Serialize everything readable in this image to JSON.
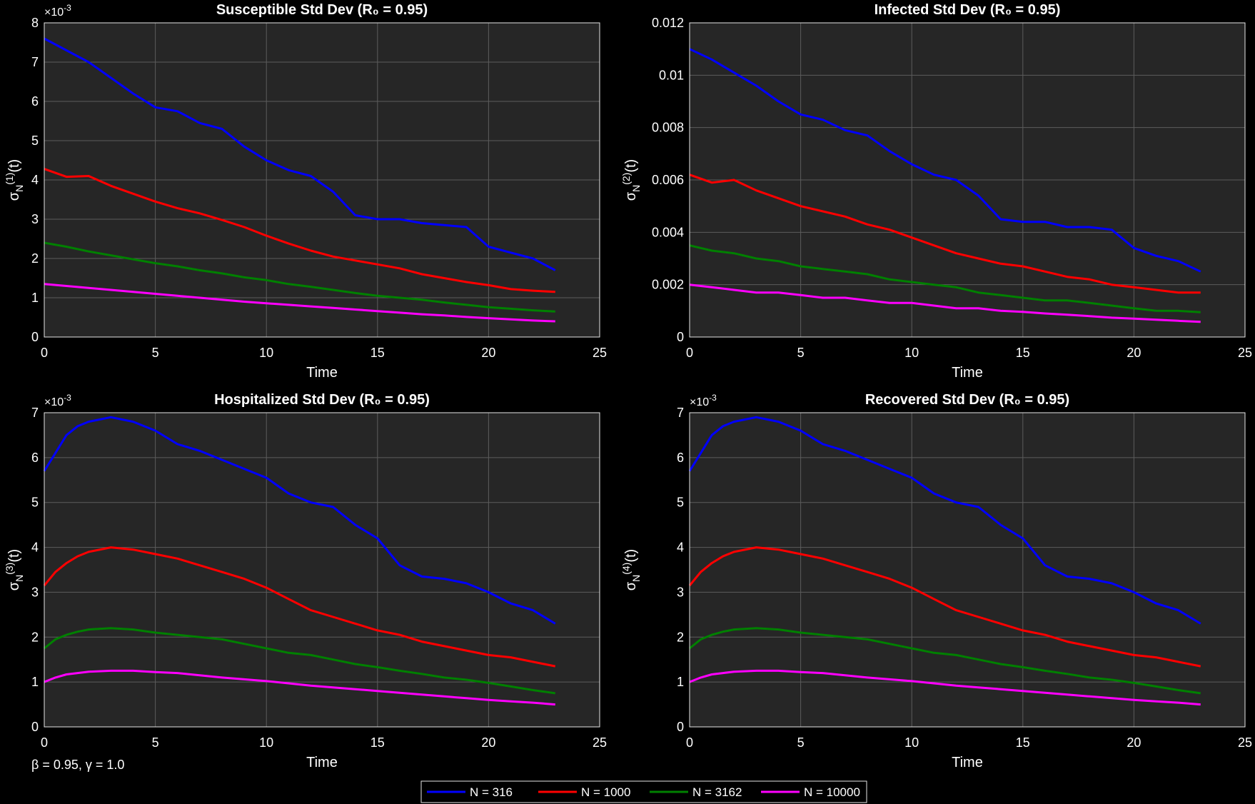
{
  "figure": {
    "footnote": "β = 0.95, γ = 1.0"
  },
  "legend": [
    {
      "label": "N = 316",
      "color": "#0000ff"
    },
    {
      "label": "N = 1000",
      "color": "#ff0000"
    },
    {
      "label": "N = 3162",
      "color": "#008000"
    },
    {
      "label": "N = 10000",
      "color": "#ff00ff"
    }
  ],
  "chart_data": [
    {
      "type": "line",
      "title": "Susceptible Std Dev (R₀ = 0.95)",
      "xlabel": "Time",
      "ylabel": "σN(1)(t)",
      "ylabel_base": "σ",
      "ylabel_sub": "N",
      "ylabel_sup": "(1)",
      "ylabel_tail": "(t)",
      "exponent_label": "×10-3",
      "exponent_base": "×10",
      "exponent_sup": "-3",
      "xlim": [
        0,
        25
      ],
      "ylim": [
        0,
        8
      ],
      "xticks": [
        0,
        5,
        10,
        15,
        20,
        25
      ],
      "yticks": [
        0,
        1,
        2,
        3,
        4,
        5,
        6,
        7,
        8
      ],
      "ytick_labels": [
        "0",
        "1",
        "2",
        "3",
        "4",
        "5",
        "6",
        "7",
        "8"
      ],
      "grid": true,
      "x": [
        0,
        1,
        2,
        3,
        4,
        5,
        6,
        7,
        8,
        9,
        10,
        11,
        12,
        13,
        14,
        15,
        16,
        17,
        18,
        19,
        20,
        21,
        22,
        23
      ],
      "series": [
        {
          "name": "N = 316",
          "color": "#0000ff",
          "values": [
            7.6,
            7.3,
            7.0,
            6.6,
            6.2,
            5.85,
            5.75,
            5.45,
            5.3,
            4.85,
            4.5,
            4.25,
            4.1,
            3.7,
            3.1,
            3.0,
            3.0,
            2.9,
            2.85,
            2.8,
            2.3,
            2.15,
            2.0,
            1.7
          ]
        },
        {
          "name": "N = 1000",
          "color": "#ff0000",
          "values": [
            4.28,
            4.08,
            4.1,
            3.85,
            3.65,
            3.45,
            3.28,
            3.15,
            2.98,
            2.8,
            2.58,
            2.38,
            2.2,
            2.05,
            1.95,
            1.85,
            1.75,
            1.6,
            1.5,
            1.4,
            1.32,
            1.22,
            1.18,
            1.15
          ]
        },
        {
          "name": "N = 3162",
          "color": "#008000",
          "values": [
            2.4,
            2.3,
            2.18,
            2.08,
            1.98,
            1.88,
            1.8,
            1.7,
            1.62,
            1.52,
            1.45,
            1.35,
            1.28,
            1.2,
            1.12,
            1.05,
            1.0,
            0.95,
            0.88,
            0.82,
            0.76,
            0.72,
            0.68,
            0.65
          ]
        },
        {
          "name": "N = 10000",
          "color": "#ff00ff",
          "values": [
            1.35,
            1.3,
            1.25,
            1.2,
            1.15,
            1.1,
            1.05,
            1.0,
            0.95,
            0.9,
            0.86,
            0.82,
            0.78,
            0.74,
            0.7,
            0.66,
            0.62,
            0.58,
            0.55,
            0.51,
            0.48,
            0.45,
            0.42,
            0.4
          ]
        }
      ]
    },
    {
      "type": "line",
      "title": "Infected Std Dev (R₀ = 0.95)",
      "xlabel": "Time",
      "ylabel": "σN(2)(t)",
      "ylabel_base": "σ",
      "ylabel_sub": "N",
      "ylabel_sup": "(2)",
      "ylabel_tail": "(t)",
      "exponent_label": "",
      "exponent_base": "",
      "exponent_sup": "",
      "xlim": [
        0,
        25
      ],
      "ylim": [
        0,
        0.012
      ],
      "xticks": [
        0,
        5,
        10,
        15,
        20,
        25
      ],
      "yticks": [
        0,
        0.002,
        0.004,
        0.006,
        0.008,
        0.01,
        0.012
      ],
      "ytick_labels": [
        "0",
        "0.002",
        "0.004",
        "0.006",
        "0.008",
        "0.01",
        "0.012"
      ],
      "grid": true,
      "x": [
        0,
        1,
        2,
        3,
        4,
        5,
        6,
        7,
        8,
        9,
        10,
        11,
        12,
        13,
        14,
        15,
        16,
        17,
        18,
        19,
        20,
        21,
        22,
        23
      ],
      "series": [
        {
          "name": "N = 316",
          "color": "#0000ff",
          "values": [
            0.011,
            0.0106,
            0.0101,
            0.0096,
            0.009,
            0.0085,
            0.0083,
            0.0079,
            0.0077,
            0.0071,
            0.0066,
            0.0062,
            0.006,
            0.0054,
            0.0045,
            0.0044,
            0.0044,
            0.0042,
            0.0042,
            0.0041,
            0.0034,
            0.0031,
            0.0029,
            0.0025
          ]
        },
        {
          "name": "N = 1000",
          "color": "#ff0000",
          "values": [
            0.0062,
            0.0059,
            0.006,
            0.0056,
            0.0053,
            0.005,
            0.0048,
            0.0046,
            0.0043,
            0.0041,
            0.0038,
            0.0035,
            0.0032,
            0.003,
            0.0028,
            0.0027,
            0.0025,
            0.0023,
            0.0022,
            0.002,
            0.0019,
            0.0018,
            0.0017,
            0.0017
          ]
        },
        {
          "name": "N = 3162",
          "color": "#008000",
          "values": [
            0.0035,
            0.0033,
            0.0032,
            0.003,
            0.0029,
            0.0027,
            0.0026,
            0.0025,
            0.0024,
            0.0022,
            0.0021,
            0.002,
            0.0019,
            0.0017,
            0.0016,
            0.0015,
            0.0014,
            0.0014,
            0.0013,
            0.0012,
            0.0011,
            0.001,
            0.001,
            0.00095
          ]
        },
        {
          "name": "N = 10000",
          "color": "#ff00ff",
          "values": [
            0.002,
            0.0019,
            0.0018,
            0.0017,
            0.0017,
            0.0016,
            0.0015,
            0.0015,
            0.0014,
            0.0013,
            0.0013,
            0.0012,
            0.0011,
            0.0011,
            0.001,
            0.00096,
            0.0009,
            0.00085,
            0.0008,
            0.00074,
            0.0007,
            0.00066,
            0.00062,
            0.00058
          ]
        }
      ]
    },
    {
      "type": "line",
      "title": "Hospitalized Std Dev (R₀ = 0.95)",
      "xlabel": "Time",
      "ylabel": "σN(3)(t)",
      "ylabel_base": "σ",
      "ylabel_sub": "N",
      "ylabel_sup": "(3)",
      "ylabel_tail": "(t)",
      "exponent_label": "×10-3",
      "exponent_base": "×10",
      "exponent_sup": "-3",
      "xlim": [
        0,
        25
      ],
      "ylim": [
        0,
        7
      ],
      "xticks": [
        0,
        5,
        10,
        15,
        20,
        25
      ],
      "yticks": [
        0,
        1,
        2,
        3,
        4,
        5,
        6,
        7
      ],
      "ytick_labels": [
        "0",
        "1",
        "2",
        "3",
        "4",
        "5",
        "6",
        "7"
      ],
      "grid": true,
      "x": [
        0,
        0.5,
        1,
        1.5,
        2,
        3,
        4,
        5,
        6,
        7,
        8,
        9,
        10,
        11,
        12,
        13,
        14,
        15,
        16,
        17,
        18,
        19,
        20,
        21,
        22,
        23
      ],
      "series": [
        {
          "name": "N = 316",
          "color": "#0000ff",
          "values": [
            5.7,
            6.1,
            6.5,
            6.7,
            6.8,
            6.9,
            6.8,
            6.6,
            6.3,
            6.15,
            5.95,
            5.75,
            5.55,
            5.2,
            5.0,
            4.9,
            4.5,
            4.2,
            3.6,
            3.35,
            3.3,
            3.2,
            3.0,
            2.75,
            2.6,
            2.3
          ]
        },
        {
          "name": "N = 1000",
          "color": "#ff0000",
          "values": [
            3.15,
            3.45,
            3.65,
            3.8,
            3.9,
            4.0,
            3.95,
            3.85,
            3.75,
            3.6,
            3.45,
            3.3,
            3.1,
            2.85,
            2.6,
            2.45,
            2.3,
            2.15,
            2.05,
            1.9,
            1.8,
            1.7,
            1.6,
            1.55,
            1.45,
            1.35
          ]
        },
        {
          "name": "N = 3162",
          "color": "#008000",
          "values": [
            1.75,
            1.95,
            2.05,
            2.12,
            2.17,
            2.2,
            2.17,
            2.1,
            2.05,
            2.0,
            1.95,
            1.85,
            1.75,
            1.65,
            1.6,
            1.5,
            1.4,
            1.33,
            1.25,
            1.18,
            1.1,
            1.05,
            0.98,
            0.9,
            0.82,
            0.75
          ]
        },
        {
          "name": "N = 10000",
          "color": "#ff00ff",
          "values": [
            1.0,
            1.1,
            1.17,
            1.2,
            1.23,
            1.25,
            1.25,
            1.22,
            1.2,
            1.15,
            1.1,
            1.06,
            1.02,
            0.97,
            0.92,
            0.88,
            0.84,
            0.8,
            0.76,
            0.72,
            0.68,
            0.64,
            0.6,
            0.57,
            0.54,
            0.5
          ]
        }
      ]
    },
    {
      "type": "line",
      "title": "Recovered Std Dev (R₀ = 0.95)",
      "xlabel": "Time",
      "ylabel": "σN(4)(t)",
      "ylabel_base": "σ",
      "ylabel_sub": "N",
      "ylabel_sup": "(4)",
      "ylabel_tail": "(t)",
      "exponent_label": "×10-3",
      "exponent_base": "×10",
      "exponent_sup": "-3",
      "xlim": [
        0,
        25
      ],
      "ylim": [
        0,
        7
      ],
      "xticks": [
        0,
        5,
        10,
        15,
        20,
        25
      ],
      "yticks": [
        0,
        1,
        2,
        3,
        4,
        5,
        6,
        7
      ],
      "ytick_labels": [
        "0",
        "1",
        "2",
        "3",
        "4",
        "5",
        "6",
        "7"
      ],
      "grid": true,
      "x": [
        0,
        0.5,
        1,
        1.5,
        2,
        3,
        4,
        5,
        6,
        7,
        8,
        9,
        10,
        11,
        12,
        13,
        14,
        15,
        16,
        17,
        18,
        19,
        20,
        21,
        22,
        23
      ],
      "series": [
        {
          "name": "N = 316",
          "color": "#0000ff",
          "values": [
            5.7,
            6.1,
            6.5,
            6.7,
            6.8,
            6.9,
            6.8,
            6.6,
            6.3,
            6.15,
            5.95,
            5.75,
            5.55,
            5.2,
            5.0,
            4.9,
            4.5,
            4.2,
            3.6,
            3.35,
            3.3,
            3.2,
            3.0,
            2.75,
            2.6,
            2.3
          ]
        },
        {
          "name": "N = 1000",
          "color": "#ff0000",
          "values": [
            3.15,
            3.45,
            3.65,
            3.8,
            3.9,
            4.0,
            3.95,
            3.85,
            3.75,
            3.6,
            3.45,
            3.3,
            3.1,
            2.85,
            2.6,
            2.45,
            2.3,
            2.15,
            2.05,
            1.9,
            1.8,
            1.7,
            1.6,
            1.55,
            1.45,
            1.35
          ]
        },
        {
          "name": "N = 3162",
          "color": "#008000",
          "values": [
            1.75,
            1.95,
            2.05,
            2.12,
            2.17,
            2.2,
            2.17,
            2.1,
            2.05,
            2.0,
            1.95,
            1.85,
            1.75,
            1.65,
            1.6,
            1.5,
            1.4,
            1.33,
            1.25,
            1.18,
            1.1,
            1.05,
            0.98,
            0.9,
            0.82,
            0.75
          ]
        },
        {
          "name": "N = 10000",
          "color": "#ff00ff",
          "values": [
            1.0,
            1.1,
            1.17,
            1.2,
            1.23,
            1.25,
            1.25,
            1.22,
            1.2,
            1.15,
            1.1,
            1.06,
            1.02,
            0.97,
            0.92,
            0.88,
            0.84,
            0.8,
            0.76,
            0.72,
            0.68,
            0.64,
            0.6,
            0.57,
            0.54,
            0.5
          ]
        }
      ]
    }
  ]
}
